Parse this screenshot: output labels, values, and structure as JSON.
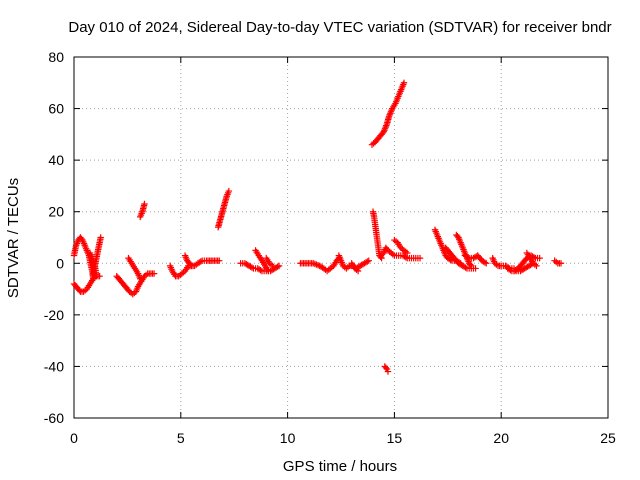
{
  "chart_data": {
    "type": "scatter",
    "title": "Day 010 of 2024, Sidereal Day-to-day VTEC variation (SDTVAR) for receiver bndr",
    "xlabel": "GPS time / hours",
    "ylabel": "SDTVAR / TECUs",
    "xlim": [
      0,
      25
    ],
    "ylim": [
      -60,
      80
    ],
    "xticks": [
      "0",
      "5",
      "10",
      "15",
      "20",
      "25"
    ],
    "yticks": [
      "-60",
      "-40",
      "-20",
      "0",
      "20",
      "40",
      "60",
      "80"
    ],
    "grid": true,
    "marker": "plus",
    "color": "#ff0000",
    "segments": [
      [
        [
          0.0,
          -8
        ],
        [
          0.1,
          -9
        ],
        [
          0.2,
          -10
        ],
        [
          0.3,
          -11
        ],
        [
          0.45,
          -11
        ],
        [
          0.6,
          -10
        ],
        [
          0.75,
          -8
        ],
        [
          0.9,
          -6
        ],
        [
          1.05,
          -5
        ],
        [
          1.2,
          -5
        ]
      ],
      [
        [
          0.0,
          3
        ],
        [
          0.05,
          5
        ],
        [
          0.1,
          7
        ],
        [
          0.2,
          9
        ],
        [
          0.3,
          10
        ],
        [
          0.4,
          9
        ],
        [
          0.5,
          7
        ],
        [
          0.6,
          5
        ],
        [
          0.7,
          3
        ],
        [
          0.75,
          1
        ],
        [
          0.8,
          -1
        ],
        [
          0.85,
          -3
        ],
        [
          0.9,
          -6
        ]
      ],
      [
        [
          0.75,
          4
        ],
        [
          0.85,
          2
        ],
        [
          0.95,
          0
        ],
        [
          1.0,
          -2
        ],
        [
          1.05,
          -5
        ]
      ],
      [
        [
          1.25,
          10
        ],
        [
          1.2,
          8
        ],
        [
          1.15,
          6
        ],
        [
          1.1,
          4
        ],
        [
          1.05,
          2
        ],
        [
          1.0,
          0
        ],
        [
          0.95,
          -2
        ],
        [
          0.9,
          -4
        ],
        [
          0.9,
          -6
        ]
      ],
      [
        [
          2.0,
          -5
        ],
        [
          2.2,
          -7
        ],
        [
          2.4,
          -9
        ],
        [
          2.6,
          -11
        ],
        [
          2.75,
          -12
        ],
        [
          2.9,
          -11
        ],
        [
          3.0,
          -9
        ],
        [
          3.15,
          -7
        ],
        [
          3.3,
          -5
        ],
        [
          3.45,
          -4
        ],
        [
          3.6,
          -4
        ],
        [
          3.75,
          -4
        ]
      ],
      [
        [
          2.55,
          2
        ],
        [
          2.7,
          0
        ],
        [
          2.85,
          -2
        ],
        [
          3.0,
          -4
        ],
        [
          3.1,
          -6
        ],
        [
          3.15,
          -7
        ]
      ],
      [
        [
          3.1,
          18
        ],
        [
          3.2,
          20
        ],
        [
          3.3,
          23
        ]
      ],
      [
        [
          4.5,
          -1
        ],
        [
          4.6,
          -3
        ],
        [
          4.75,
          -5
        ],
        [
          4.9,
          -5
        ],
        [
          5.05,
          -4
        ],
        [
          5.2,
          -3
        ],
        [
          5.35,
          -1
        ],
        [
          5.5,
          -1
        ],
        [
          5.65,
          -1
        ],
        [
          5.8,
          0
        ],
        [
          6.0,
          1
        ],
        [
          6.2,
          1
        ],
        [
          6.5,
          1
        ],
        [
          6.8,
          1
        ]
      ],
      [
        [
          5.2,
          3
        ],
        [
          5.3,
          1
        ],
        [
          5.4,
          0
        ],
        [
          5.5,
          -1
        ]
      ],
      [
        [
          6.75,
          14
        ],
        [
          6.85,
          17
        ],
        [
          6.95,
          20
        ],
        [
          7.05,
          23
        ],
        [
          7.15,
          26
        ],
        [
          7.25,
          28
        ]
      ],
      [
        [
          7.8,
          0
        ],
        [
          8.0,
          0
        ],
        [
          8.2,
          -1
        ],
        [
          8.4,
          -2
        ],
        [
          8.6,
          -2
        ],
        [
          8.8,
          -3
        ],
        [
          9.0,
          -3
        ],
        [
          9.2,
          -3
        ],
        [
          9.4,
          -2
        ],
        [
          9.6,
          -1
        ]
      ],
      [
        [
          8.5,
          5
        ],
        [
          8.65,
          3
        ],
        [
          8.8,
          1
        ],
        [
          8.95,
          -1
        ],
        [
          9.1,
          -3
        ]
      ],
      [
        [
          9.0,
          2
        ],
        [
          9.15,
          0
        ],
        [
          9.3,
          -1
        ]
      ],
      [
        [
          10.6,
          0
        ],
        [
          10.9,
          0
        ],
        [
          11.2,
          0
        ],
        [
          11.5,
          -1
        ],
        [
          11.7,
          -2
        ],
        [
          11.85,
          -3
        ],
        [
          12.0,
          -2
        ],
        [
          12.15,
          -1
        ],
        [
          12.3,
          1
        ],
        [
          12.4,
          2
        ]
      ],
      [
        [
          12.4,
          3
        ],
        [
          12.5,
          1
        ],
        [
          12.6,
          -1
        ],
        [
          12.75,
          -2
        ],
        [
          12.9,
          -1
        ],
        [
          13.05,
          -1
        ],
        [
          13.2,
          -2
        ],
        [
          13.4,
          -1
        ],
        [
          13.6,
          0
        ],
        [
          13.8,
          1
        ]
      ],
      [
        [
          13.0,
          0
        ],
        [
          13.15,
          -2
        ],
        [
          13.3,
          -3
        ]
      ],
      [
        [
          13.95,
          46
        ],
        [
          14.1,
          47
        ],
        [
          14.3,
          49
        ],
        [
          14.5,
          51
        ],
        [
          14.65,
          54
        ],
        [
          14.75,
          57
        ],
        [
          14.9,
          60
        ],
        [
          15.05,
          62
        ],
        [
          15.15,
          64
        ],
        [
          15.25,
          66
        ],
        [
          15.35,
          68
        ],
        [
          15.45,
          70
        ]
      ],
      [
        [
          14.0,
          20
        ],
        [
          14.05,
          18
        ],
        [
          14.1,
          15
        ],
        [
          14.15,
          12
        ],
        [
          14.2,
          9
        ],
        [
          14.25,
          6
        ],
        [
          14.3,
          3
        ],
        [
          14.4,
          2
        ]
      ],
      [
        [
          14.35,
          3
        ],
        [
          14.5,
          4
        ],
        [
          14.6,
          6
        ],
        [
          14.7,
          5
        ],
        [
          14.85,
          4
        ],
        [
          15.0,
          3
        ],
        [
          15.2,
          3
        ],
        [
          15.4,
          3
        ],
        [
          15.6,
          2
        ],
        [
          15.8,
          2
        ],
        [
          16.0,
          2
        ],
        [
          16.2,
          2
        ]
      ],
      [
        [
          15.0,
          9
        ],
        [
          15.15,
          8
        ],
        [
          15.3,
          6
        ],
        [
          15.45,
          5
        ],
        [
          15.6,
          4
        ]
      ],
      [
        [
          14.55,
          -40
        ],
        [
          14.65,
          -41
        ],
        [
          14.7,
          -42
        ]
      ],
      [
        [
          16.9,
          13
        ],
        [
          17.0,
          11
        ],
        [
          17.1,
          9
        ],
        [
          17.2,
          7
        ],
        [
          17.3,
          5
        ],
        [
          17.4,
          3
        ],
        [
          17.5,
          2
        ],
        [
          17.7,
          1
        ],
        [
          17.9,
          1
        ],
        [
          18.1,
          0
        ]
      ],
      [
        [
          17.4,
          6
        ],
        [
          17.6,
          4
        ],
        [
          17.8,
          2
        ],
        [
          18.0,
          0
        ],
        [
          18.2,
          -1
        ],
        [
          18.4,
          -2
        ],
        [
          18.6,
          -2
        ],
        [
          18.8,
          -2
        ]
      ],
      [
        [
          17.9,
          11
        ],
        [
          18.0,
          10
        ],
        [
          18.1,
          8
        ],
        [
          18.2,
          6
        ],
        [
          18.3,
          4
        ],
        [
          18.4,
          2
        ],
        [
          18.5,
          0
        ],
        [
          18.6,
          -1
        ]
      ],
      [
        [
          18.3,
          3
        ],
        [
          18.5,
          2
        ],
        [
          18.7,
          2
        ],
        [
          18.9,
          3
        ],
        [
          19.1,
          1
        ],
        [
          19.3,
          0
        ]
      ],
      [
        [
          19.6,
          2
        ],
        [
          19.7,
          0
        ],
        [
          19.85,
          -1
        ],
        [
          20.0,
          -1
        ],
        [
          20.2,
          -1
        ],
        [
          20.4,
          -2
        ],
        [
          20.6,
          -2
        ]
      ],
      [
        [
          20.3,
          -2
        ],
        [
          20.5,
          -3
        ],
        [
          20.7,
          -3
        ],
        [
          20.9,
          -3
        ],
        [
          21.1,
          -2
        ],
        [
          21.3,
          -1
        ],
        [
          21.5,
          0
        ]
      ],
      [
        [
          20.6,
          -3
        ],
        [
          20.8,
          -2
        ],
        [
          21.0,
          0
        ],
        [
          21.2,
          2
        ],
        [
          21.4,
          3
        ],
        [
          21.6,
          2
        ],
        [
          21.8,
          2
        ]
      ],
      [
        [
          21.2,
          4
        ],
        [
          21.35,
          2
        ],
        [
          21.5,
          0
        ],
        [
          21.65,
          -1
        ]
      ],
      [
        [
          22.5,
          1
        ],
        [
          22.65,
          0
        ],
        [
          22.8,
          0
        ]
      ]
    ]
  }
}
